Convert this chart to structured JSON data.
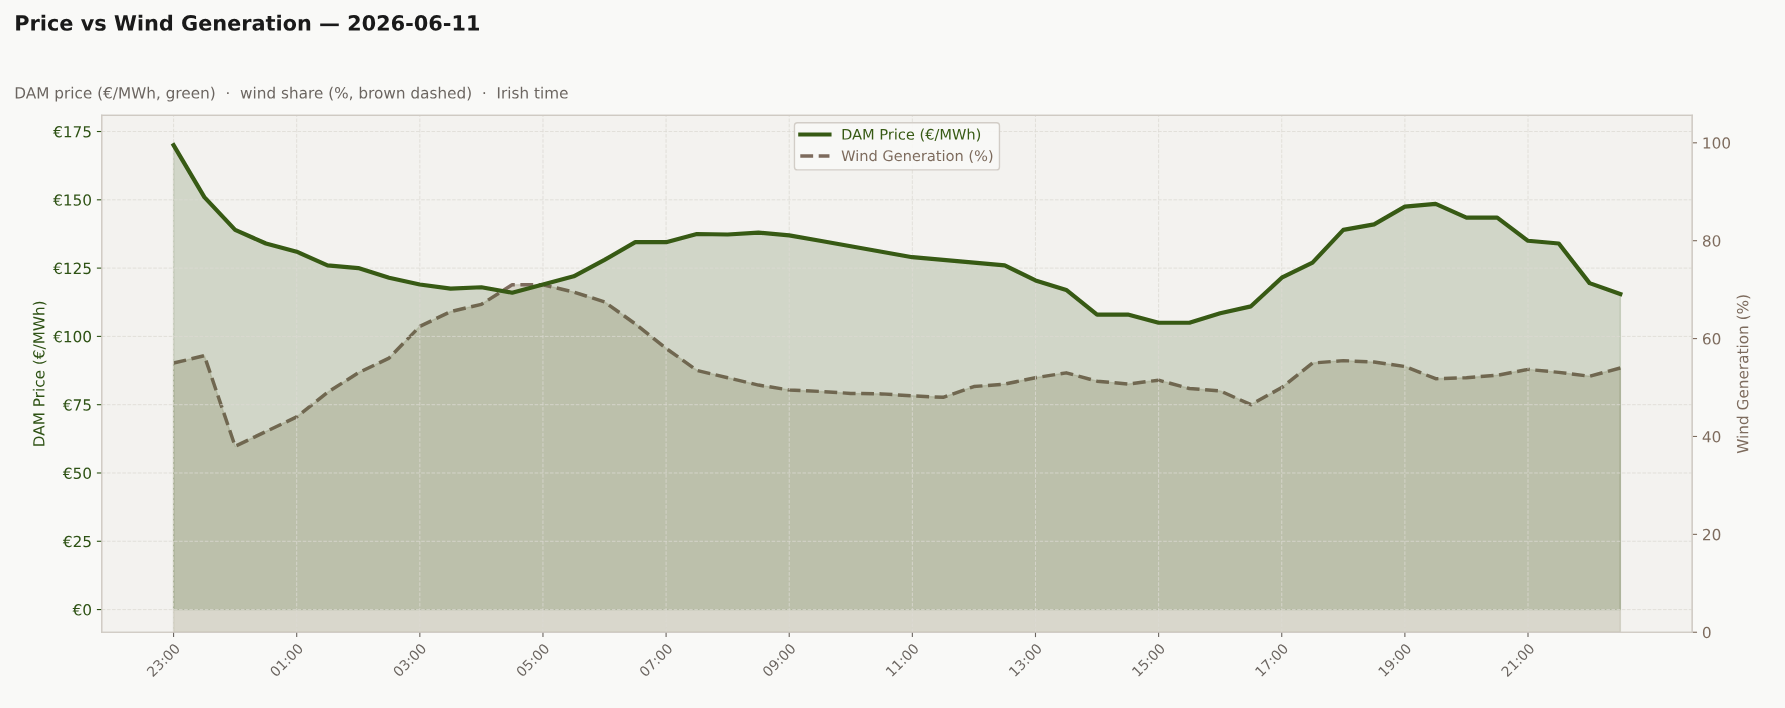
{
  "chart_data": {
    "type": "area",
    "title": "Price vs Wind Generation — 2026-06-11",
    "subtitle": "DAM price (€/MWh, green)  ·  wind share (%, brown dashed)  ·  Irish time",
    "ylabel": "DAM Price (€/MWh)",
    "y2label": "Wind Generation (%)",
    "x": [
      "2026-06-10T23:00",
      "2026-06-10T23:30",
      "2026-06-11T00:00",
      "2026-06-11T00:30",
      "2026-06-11T01:00",
      "2026-06-11T01:30",
      "2026-06-11T02:00",
      "2026-06-11T02:30",
      "2026-06-11T03:00",
      "2026-06-11T03:30",
      "2026-06-11T04:00",
      "2026-06-11T04:30",
      "2026-06-11T05:00",
      "2026-06-11T05:30",
      "2026-06-11T06:00",
      "2026-06-11T06:30",
      "2026-06-11T07:00",
      "2026-06-11T07:30",
      "2026-06-11T08:00",
      "2026-06-11T08:30",
      "2026-06-11T09:00",
      "2026-06-11T09:30",
      "2026-06-11T10:00",
      "2026-06-11T10:30",
      "2026-06-11T11:00",
      "2026-06-11T11:30",
      "2026-06-11T12:00",
      "2026-06-11T12:30",
      "2026-06-11T13:00",
      "2026-06-11T13:30",
      "2026-06-11T14:00",
      "2026-06-11T14:30",
      "2026-06-11T15:00",
      "2026-06-11T15:30",
      "2026-06-11T16:00",
      "2026-06-11T16:30",
      "2026-06-11T17:00",
      "2026-06-11T17:30",
      "2026-06-11T18:00",
      "2026-06-11T18:30",
      "2026-06-11T19:00",
      "2026-06-11T19:30",
      "2026-06-11T20:00",
      "2026-06-11T20:30",
      "2026-06-11T21:00",
      "2026-06-11T21:30",
      "2026-06-11T22:00",
      "2026-06-11T22:30"
    ],
    "series": [
      {
        "name": "DAM Price (€/MWh)",
        "color": "#375a14",
        "line_style": "solid",
        "values": [
          170,
          151,
          139,
          134,
          131,
          126,
          125,
          121.5,
          119,
          117.5,
          118,
          116,
          119,
          122,
          128,
          134.5,
          134.5,
          137.5,
          137.3,
          138,
          137,
          135,
          133,
          131,
          129,
          128,
          127,
          126,
          120.5,
          117,
          108,
          108,
          105,
          105,
          108.5,
          111,
          121.5,
          127,
          139,
          141,
          147.5,
          148.5,
          143.5,
          143.5,
          135,
          134,
          119.5,
          115.5
        ]
      },
      {
        "name": "Wind Generation (%)",
        "color": "#7d6b5d",
        "line_style": "dashed",
        "axis": "y2",
        "values": [
          55,
          56.5,
          38,
          41,
          44,
          49,
          53,
          56,
          62.5,
          65.5,
          67,
          71,
          71,
          69.5,
          67.5,
          63,
          58,
          53.5,
          52,
          50.5,
          49.5,
          49.2,
          48.8,
          48.7,
          48.3,
          48,
          50.2,
          50.7,
          52,
          53,
          51.3,
          50.7,
          51.5,
          49.8,
          49.3,
          46.5,
          50,
          55,
          55.5,
          55.2,
          54.3,
          51.8,
          52,
          52.5,
          53.7,
          53.1,
          52.3,
          54
        ]
      }
    ],
    "xlim": [
      "2026-06-10T21:50",
      "2026-06-11T23:40"
    ],
    "xticks": [
      {
        "value": "2026-06-10T23:00",
        "label": "23:00"
      },
      {
        "value": "2026-06-11T01:00",
        "label": "01:00"
      },
      {
        "value": "2026-06-11T03:00",
        "label": "03:00"
      },
      {
        "value": "2026-06-11T05:00",
        "label": "05:00"
      },
      {
        "value": "2026-06-11T07:00",
        "label": "07:00"
      },
      {
        "value": "2026-06-11T09:00",
        "label": "09:00"
      },
      {
        "value": "2026-06-11T11:00",
        "label": "11:00"
      },
      {
        "value": "2026-06-11T13:00",
        "label": "13:00"
      },
      {
        "value": "2026-06-11T15:00",
        "label": "15:00"
      },
      {
        "value": "2026-06-11T17:00",
        "label": "17:00"
      },
      {
        "value": "2026-06-11T19:00",
        "label": "19:00"
      },
      {
        "value": "2026-06-11T21:00",
        "label": "21:00"
      }
    ],
    "ylim": [
      -8.3,
      180.9
    ],
    "yticks": [
      {
        "value": 0,
        "label": "€0"
      },
      {
        "value": 25,
        "label": "€25"
      },
      {
        "value": 50,
        "label": "€50"
      },
      {
        "value": 75,
        "label": "€75"
      },
      {
        "value": 100,
        "label": "€100"
      },
      {
        "value": 125,
        "label": "€125"
      },
      {
        "value": 150,
        "label": "€150"
      },
      {
        "value": 175,
        "label": "€175"
      }
    ],
    "y2lim": [
      0,
      105.6
    ],
    "y2ticks": [
      0,
      20,
      40,
      60,
      80,
      100
    ],
    "grid": true,
    "legend": "top center"
  }
}
